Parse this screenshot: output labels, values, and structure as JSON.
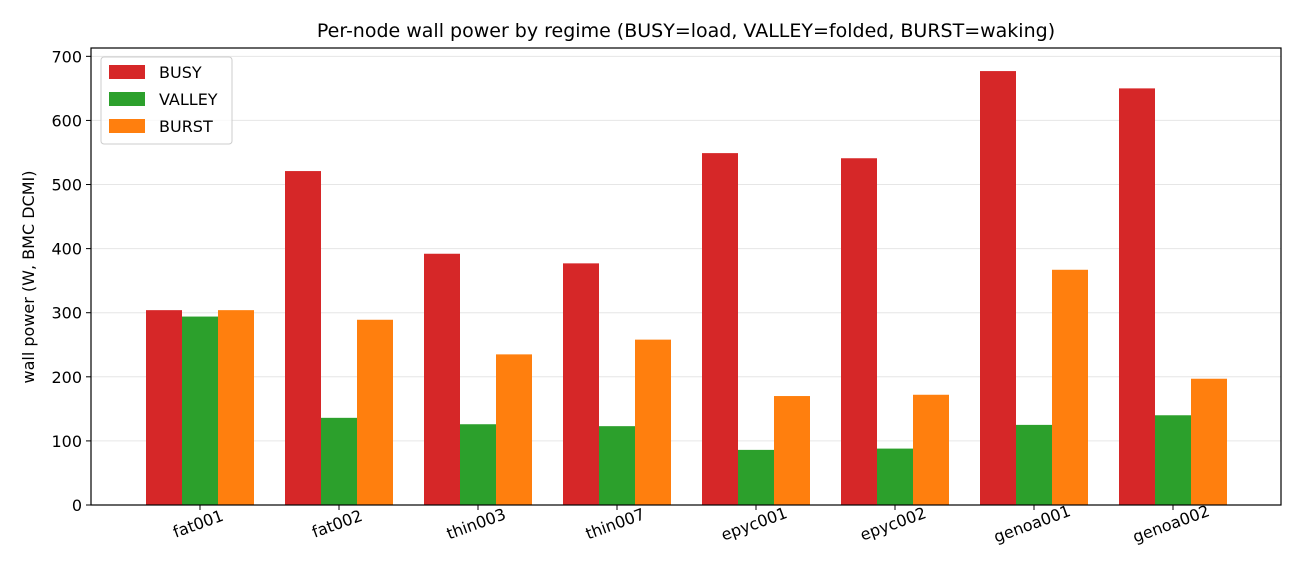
{
  "chart_data": {
    "type": "bar",
    "title": "Per-node wall power by regime (BUSY=load, VALLEY=folded, BURST=waking)",
    "xlabel": "",
    "ylabel": "wall power (W, BMC DCMI)",
    "ylim": [
      0,
      713
    ],
    "yticks": [
      0,
      100,
      200,
      300,
      400,
      500,
      600,
      700
    ],
    "grid": "horizontal",
    "legend": "top-left",
    "categories": [
      "fat001",
      "fat002",
      "thin003",
      "thin007",
      "epyc001",
      "epyc002",
      "genoa001",
      "genoa002"
    ],
    "series": [
      {
        "name": "BUSY",
        "color": "#d62728",
        "values": [
          304,
          521,
          392,
          377,
          549,
          541,
          677,
          650
        ]
      },
      {
        "name": "VALLEY",
        "color": "#2ca02c",
        "values": [
          294,
          136,
          126,
          123,
          86,
          88,
          125,
          140
        ]
      },
      {
        "name": "BURST",
        "color": "#ff7f0e",
        "values": [
          304,
          289,
          235,
          258,
          170,
          172,
          367,
          197
        ]
      }
    ]
  }
}
